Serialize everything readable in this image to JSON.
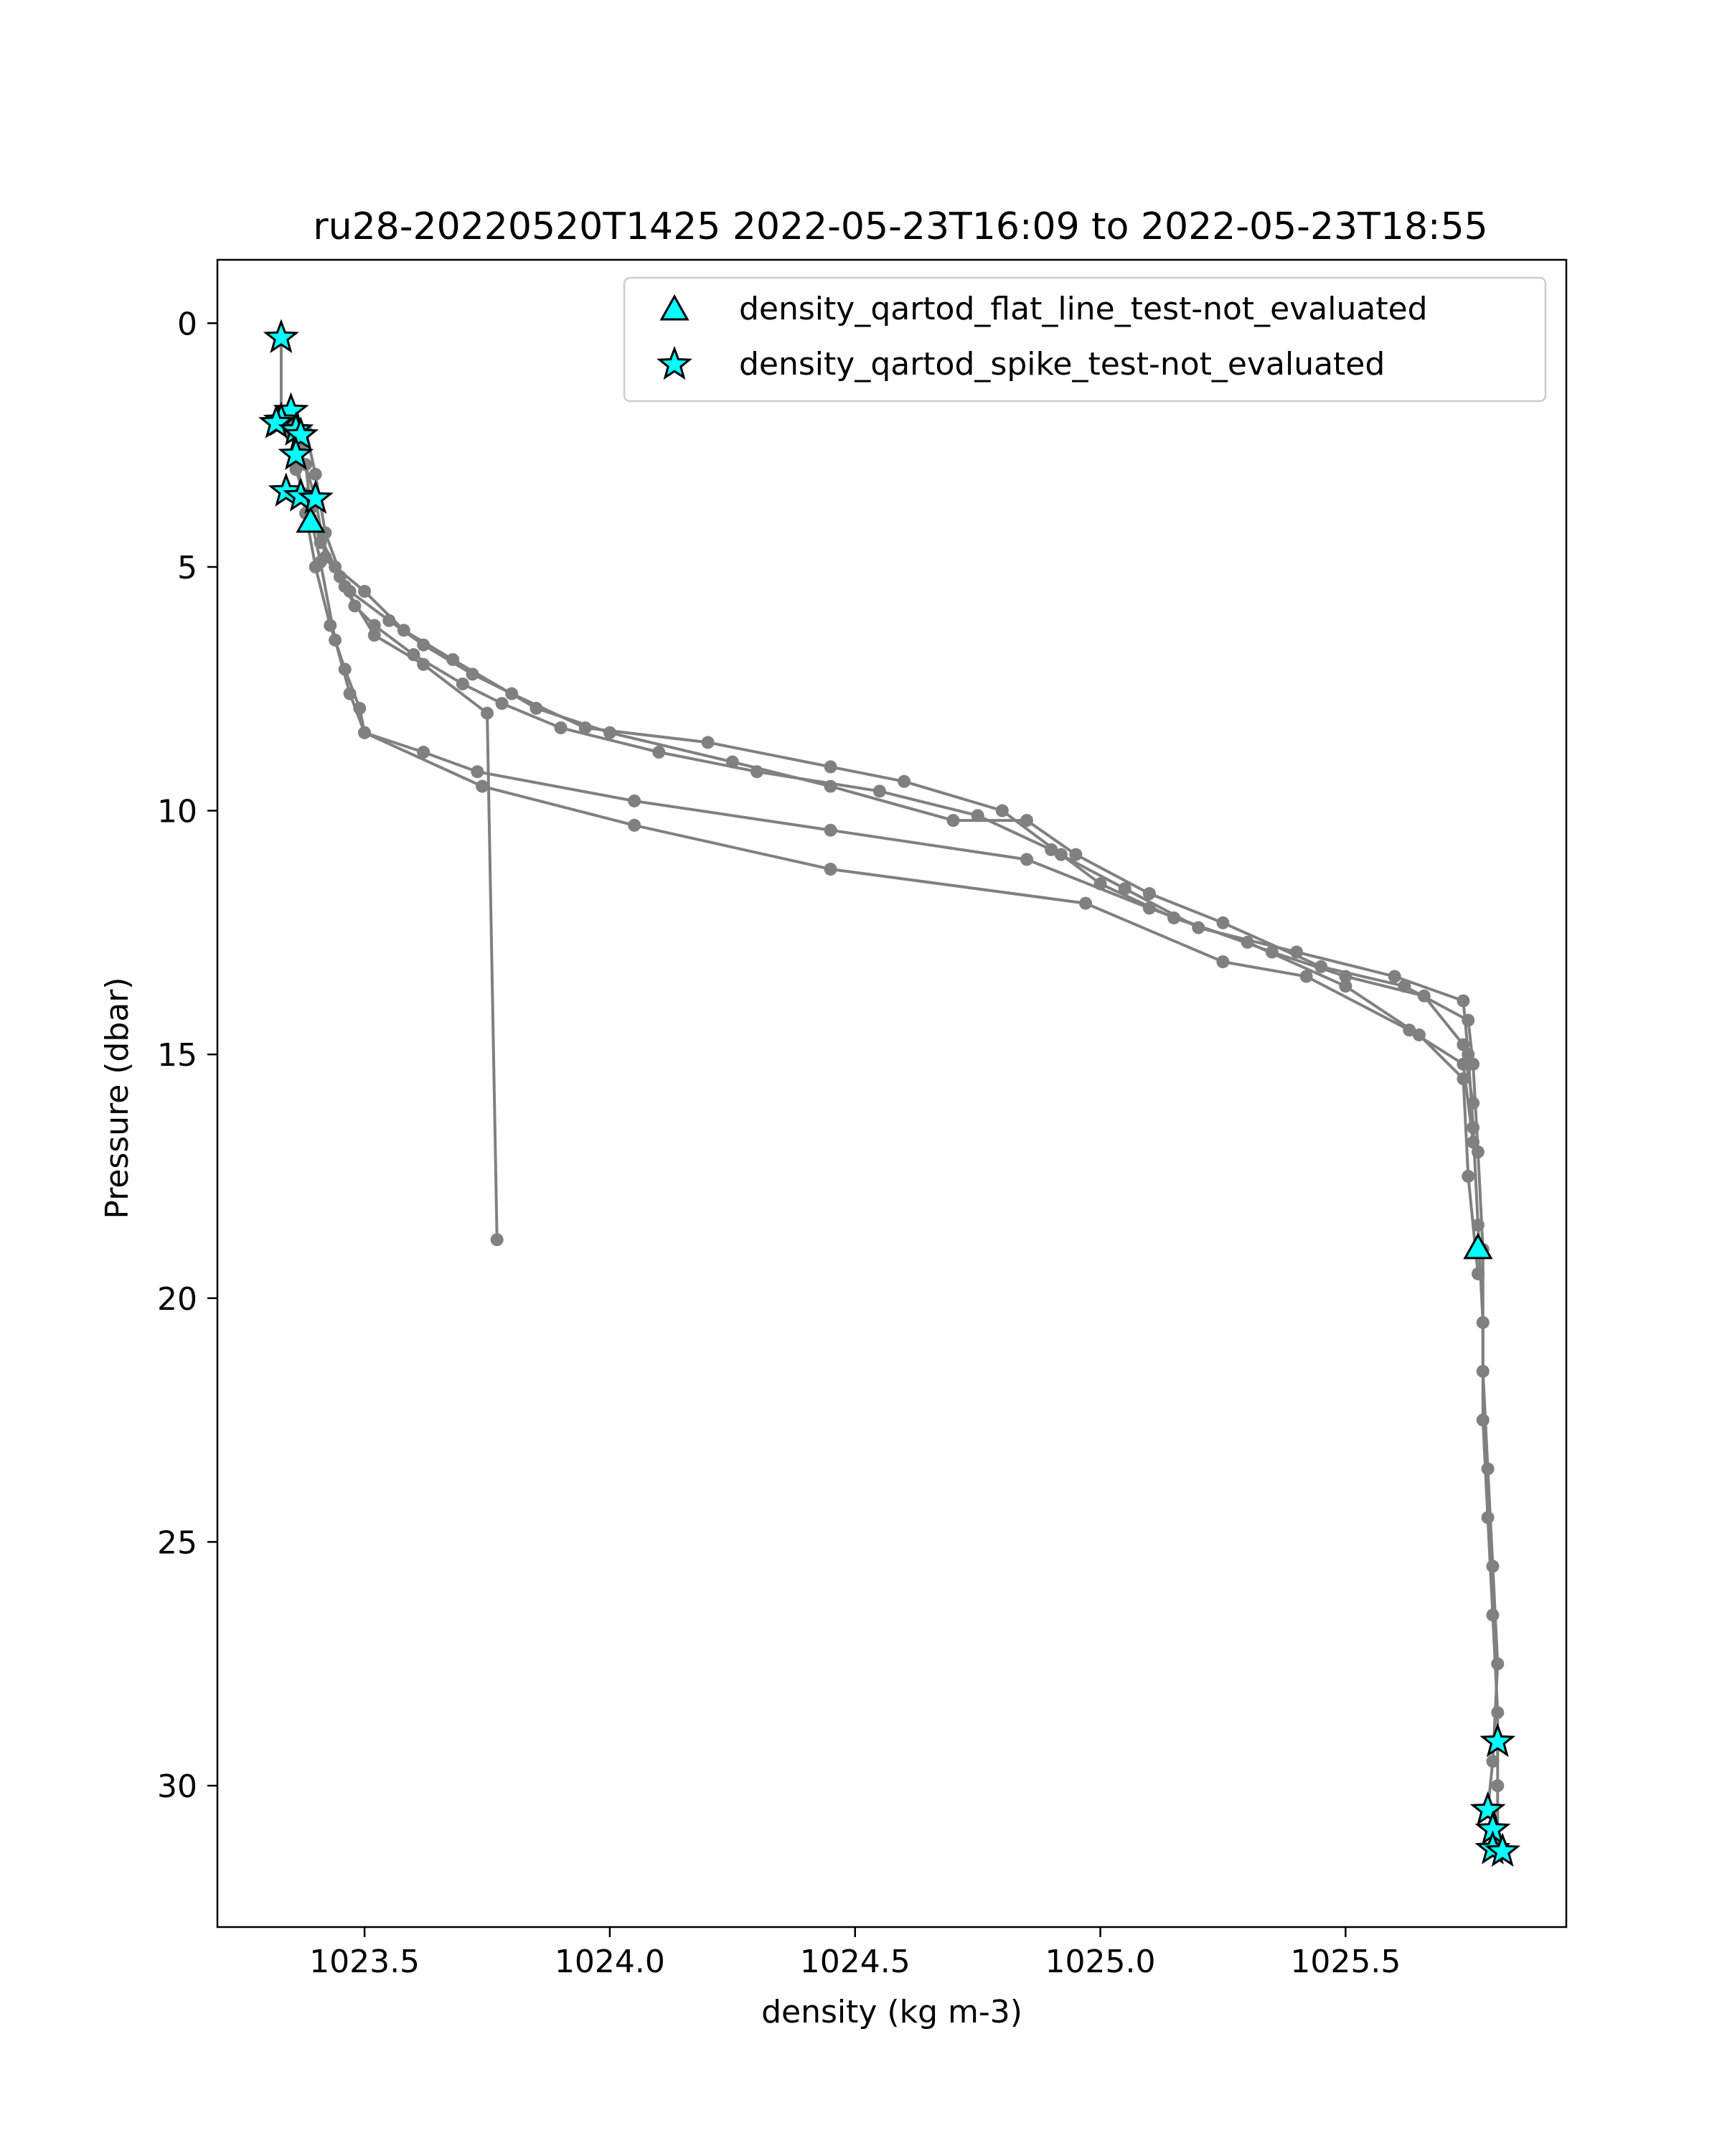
{
  "chart_data": {
    "type": "scatter",
    "title": "ru28-20220520T1425 2022-05-23T16:09 to 2022-05-23T18:55",
    "xlabel": "density (kg m-3)",
    "ylabel": "Pressure (dbar)",
    "xlim": [
      1023.2,
      1025.95
    ],
    "ylim": [
      32.9,
      -1.3
    ],
    "y_inverted": true,
    "xticks": [
      "1023.5",
      "1024.0",
      "1024.5",
      "1025.0",
      "1025.5"
    ],
    "xtick_values": [
      1023.5,
      1024.0,
      1024.5,
      1025.0,
      1025.5
    ],
    "yticks": [
      "0",
      "5",
      "10",
      "15",
      "20",
      "25",
      "30"
    ],
    "ytick_values": [
      0,
      5,
      10,
      15,
      20,
      25,
      30
    ],
    "grid": false,
    "legend_position": "top-right",
    "colors": {
      "profile": "#808080",
      "flag": "#00ffff",
      "flag_edge": "#000000"
    },
    "series": [
      {
        "name": "",
        "marker": "circle",
        "color": "#808080",
        "points": [
          [
            1023.33,
            0.3
          ],
          [
            1023.33,
            1.8
          ],
          [
            1023.35,
            2.3
          ],
          [
            1023.38,
            2.9
          ],
          [
            1023.39,
            3.8
          ],
          [
            1023.41,
            4.5
          ],
          [
            1023.45,
            5.2
          ],
          [
            1023.48,
            5.8
          ],
          [
            1023.52,
            6.2
          ],
          [
            1023.6,
            6.8
          ],
          [
            1023.7,
            7.4
          ],
          [
            1023.78,
            7.8
          ],
          [
            1023.9,
            8.3
          ],
          [
            1024.1,
            8.8
          ],
          [
            1024.3,
            9.2
          ],
          [
            1024.55,
            9.6
          ],
          [
            1024.75,
            10.1
          ],
          [
            1024.9,
            10.8
          ],
          [
            1025.05,
            11.6
          ],
          [
            1025.2,
            12.4
          ],
          [
            1025.4,
            12.9
          ],
          [
            1025.6,
            13.4
          ],
          [
            1025.74,
            13.9
          ],
          [
            1025.75,
            15.0
          ],
          [
            1025.76,
            16.5
          ],
          [
            1025.77,
            18.5
          ],
          [
            1025.78,
            20.5
          ],
          [
            1025.78,
            22.5
          ],
          [
            1025.79,
            24.5
          ],
          [
            1025.8,
            26.5
          ],
          [
            1025.81,
            28.5
          ],
          [
            1025.81,
            30.0
          ],
          [
            1025.81,
            31.3
          ]
        ]
      },
      {
        "name": "",
        "marker": "circle",
        "color": "#808080",
        "points": [
          [
            1023.35,
            2.0
          ],
          [
            1023.36,
            3.0
          ],
          [
            1023.39,
            4.0
          ],
          [
            1023.44,
            5.0
          ],
          [
            1023.5,
            5.5
          ],
          [
            1023.58,
            6.3
          ],
          [
            1023.68,
            6.9
          ],
          [
            1023.85,
            7.9
          ],
          [
            1024.0,
            8.4
          ],
          [
            1024.25,
            9.0
          ],
          [
            1024.45,
            9.5
          ],
          [
            1024.7,
            10.2
          ],
          [
            1024.85,
            10.2
          ],
          [
            1024.95,
            10.9
          ],
          [
            1025.1,
            11.7
          ],
          [
            1025.25,
            12.3
          ],
          [
            1025.45,
            13.2
          ],
          [
            1025.62,
            13.6
          ],
          [
            1025.75,
            14.3
          ],
          [
            1025.76,
            15.2
          ],
          [
            1025.77,
            17.0
          ],
          [
            1025.78,
            19.0
          ],
          [
            1025.78,
            21.5
          ],
          [
            1025.79,
            23.5
          ],
          [
            1025.8,
            25.5
          ],
          [
            1025.81,
            27.5
          ],
          [
            1025.8,
            29.5
          ],
          [
            1025.79,
            30.5
          ]
        ]
      },
      {
        "name": "",
        "marker": "circle",
        "color": "#808080",
        "points": [
          [
            1023.37,
            2.6
          ],
          [
            1023.4,
            3.6
          ],
          [
            1023.42,
            4.8
          ],
          [
            1023.47,
            5.5
          ],
          [
            1023.55,
            6.1
          ],
          [
            1023.62,
            6.6
          ],
          [
            1023.72,
            7.2
          ],
          [
            1023.8,
            7.6
          ],
          [
            1023.95,
            8.3
          ],
          [
            1024.2,
            8.6
          ],
          [
            1024.45,
            9.1
          ],
          [
            1024.6,
            9.4
          ],
          [
            1024.8,
            10.0
          ],
          [
            1024.92,
            10.9
          ],
          [
            1025.0,
            11.5
          ],
          [
            1025.15,
            12.2
          ],
          [
            1025.3,
            12.7
          ],
          [
            1025.5,
            13.6
          ],
          [
            1025.65,
            14.6
          ],
          [
            1025.74,
            15.5
          ],
          [
            1025.75,
            17.5
          ],
          [
            1025.77,
            19.5
          ]
        ]
      },
      {
        "name": "",
        "marker": "circle",
        "color": "#808080",
        "points": [
          [
            1023.38,
            2.2
          ],
          [
            1023.4,
            3.1
          ],
          [
            1023.42,
            4.3
          ],
          [
            1023.46,
            5.4
          ],
          [
            1023.52,
            6.4
          ],
          [
            1023.62,
            7.0
          ],
          [
            1023.75,
            8.0
          ],
          [
            1023.77,
            18.8
          ]
        ]
      },
      {
        "name": "",
        "marker": "circle",
        "color": "#808080",
        "points": [
          [
            1023.36,
            2.7
          ],
          [
            1023.38,
            3.9
          ],
          [
            1023.4,
            5.0
          ],
          [
            1023.43,
            6.2
          ],
          [
            1023.46,
            7.1
          ],
          [
            1023.49,
            7.9
          ],
          [
            1023.5,
            8.4
          ],
          [
            1023.62,
            8.8
          ],
          [
            1023.73,
            9.2
          ],
          [
            1024.05,
            9.8
          ],
          [
            1024.45,
            10.4
          ],
          [
            1024.85,
            11.0
          ],
          [
            1025.1,
            12.0
          ],
          [
            1025.35,
            12.9
          ],
          [
            1025.5,
            13.4
          ],
          [
            1025.66,
            13.8
          ],
          [
            1025.74,
            14.8
          ],
          [
            1025.76,
            16.0
          ]
        ]
      },
      {
        "name": "",
        "marker": "circle",
        "color": "#808080",
        "points": [
          [
            1023.38,
            3.5
          ],
          [
            1023.41,
            4.9
          ],
          [
            1023.44,
            6.5
          ],
          [
            1023.47,
            7.6
          ],
          [
            1023.5,
            8.4
          ],
          [
            1023.74,
            9.5
          ],
          [
            1024.05,
            10.3
          ],
          [
            1024.45,
            11.2
          ],
          [
            1024.97,
            11.9
          ],
          [
            1025.25,
            13.1
          ],
          [
            1025.42,
            13.4
          ],
          [
            1025.63,
            14.5
          ],
          [
            1025.74,
            15.2
          ],
          [
            1025.76,
            16.8
          ]
        ]
      },
      {
        "name": "density_qartod_flat_line_test-not_evaluated",
        "marker": "triangle",
        "color": "#00ffff",
        "points": [
          [
            1023.39,
            4.1
          ],
          [
            1025.77,
            19.0
          ]
        ]
      },
      {
        "name": "density_qartod_spike_test-not_evaluated",
        "marker": "star",
        "color": "#00ffff",
        "points": [
          [
            1023.33,
            0.3
          ],
          [
            1023.35,
            1.8
          ],
          [
            1023.33,
            2.0
          ],
          [
            1023.32,
            2.05
          ],
          [
            1023.36,
            2.2
          ],
          [
            1023.37,
            2.3
          ],
          [
            1023.36,
            2.7
          ],
          [
            1023.34,
            3.45
          ],
          [
            1023.37,
            3.55
          ],
          [
            1023.4,
            3.6
          ],
          [
            1025.81,
            29.1
          ],
          [
            1025.79,
            30.5
          ],
          [
            1025.8,
            30.9
          ],
          [
            1025.8,
            31.3
          ],
          [
            1025.82,
            31.35
          ]
        ]
      }
    ]
  }
}
